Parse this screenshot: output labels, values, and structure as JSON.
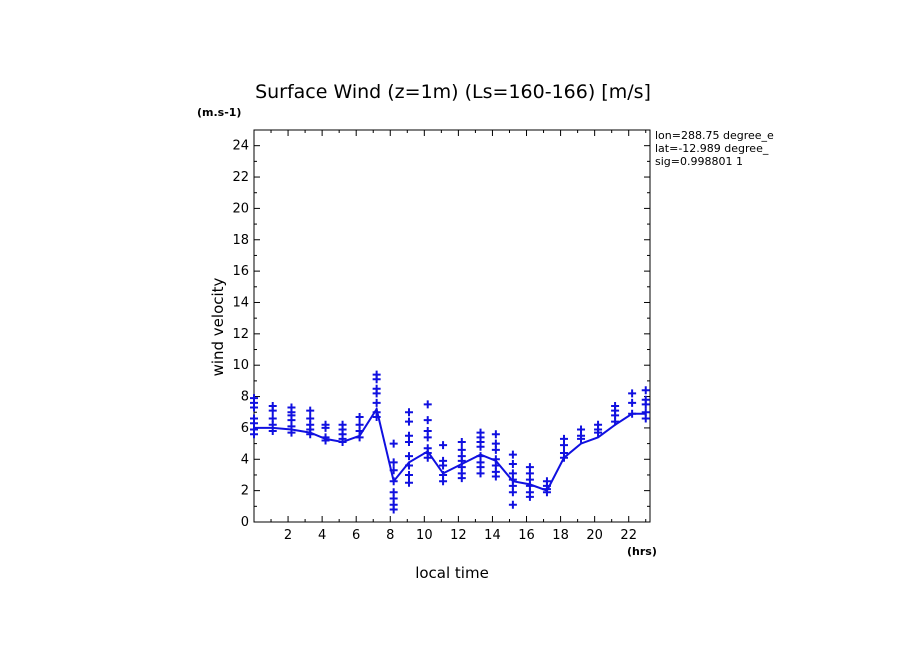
{
  "chart_data": {
    "type": "line",
    "title": "Surface Wind (z=1m) (Ls=160-166) [m/s]",
    "ylabel": "wind velocity",
    "y_unit": "(m.s-1)",
    "xlabel": "local time",
    "x_unit": "(hrs)",
    "xlim": [
      0,
      23.25
    ],
    "ylim": [
      0,
      25
    ],
    "x_ticks": [
      2,
      4,
      6,
      8,
      10,
      12,
      14,
      16,
      18,
      20,
      22
    ],
    "y_ticks": [
      0,
      2,
      4,
      6,
      8,
      10,
      12,
      14,
      16,
      18,
      20,
      22,
      24
    ],
    "info_lines": [
      "lon=288.75 degree_e",
      "lat=-12.989 degree_",
      "sig=0.998801 1"
    ],
    "color": "#1010e0",
    "series": [
      {
        "kind": "line",
        "x": [
          0,
          1.1,
          2.2,
          3.3,
          4.2,
          5.2,
          6.2,
          7.2,
          8.2,
          9.1,
          10.2,
          11.1,
          12.2,
          13.3,
          14.2,
          15.2,
          16.2,
          17.2,
          18.2,
          19.2,
          20.2,
          21.2,
          22.2,
          23.0
        ],
        "y": [
          6.0,
          6.0,
          5.9,
          5.7,
          5.3,
          5.1,
          5.5,
          7.2,
          2.6,
          3.8,
          4.5,
          3.1,
          3.7,
          4.3,
          3.9,
          2.6,
          2.4,
          2.0,
          4.1,
          5.0,
          5.4,
          6.2,
          6.9,
          6.9
        ]
      },
      {
        "kind": "markers",
        "marker": "+",
        "points": [
          [
            0,
            7.9
          ],
          [
            0,
            7.6
          ],
          [
            0,
            7.3
          ],
          [
            0,
            6.6
          ],
          [
            0,
            6.3
          ],
          [
            0,
            5.9
          ],
          [
            0,
            5.6
          ],
          [
            1.1,
            7.4
          ],
          [
            1.1,
            7.1
          ],
          [
            1.1,
            6.6
          ],
          [
            1.1,
            6.2
          ],
          [
            1.1,
            5.8
          ],
          [
            2.2,
            7.3
          ],
          [
            2.2,
            7.0
          ],
          [
            2.2,
            6.8
          ],
          [
            2.2,
            6.5
          ],
          [
            2.2,
            6.1
          ],
          [
            2.2,
            5.7
          ],
          [
            3.3,
            7.1
          ],
          [
            3.3,
            6.6
          ],
          [
            3.3,
            6.2
          ],
          [
            3.3,
            5.9
          ],
          [
            3.3,
            5.6
          ],
          [
            4.2,
            6.2
          ],
          [
            4.2,
            6.0
          ],
          [
            4.2,
            5.4
          ],
          [
            4.2,
            5.2
          ],
          [
            5.2,
            6.2
          ],
          [
            5.2,
            5.9
          ],
          [
            5.2,
            5.6
          ],
          [
            5.2,
            5.3
          ],
          [
            5.2,
            5.1
          ],
          [
            6.2,
            6.7
          ],
          [
            6.2,
            6.2
          ],
          [
            6.2,
            5.8
          ],
          [
            6.2,
            5.4
          ],
          [
            7.2,
            9.4
          ],
          [
            7.2,
            9.1
          ],
          [
            7.2,
            8.5
          ],
          [
            7.2,
            8.2
          ],
          [
            7.2,
            7.6
          ],
          [
            7.2,
            7.0
          ],
          [
            7.2,
            6.7
          ],
          [
            8.2,
            5.0
          ],
          [
            8.2,
            3.8
          ],
          [
            8.2,
            3.3
          ],
          [
            8.2,
            2.6
          ],
          [
            8.2,
            1.9
          ],
          [
            8.2,
            1.5
          ],
          [
            8.2,
            1.1
          ],
          [
            8.2,
            0.8
          ],
          [
            9.1,
            7.0
          ],
          [
            9.1,
            6.4
          ],
          [
            9.1,
            5.5
          ],
          [
            9.1,
            5.1
          ],
          [
            9.1,
            4.2
          ],
          [
            9.1,
            3.6
          ],
          [
            9.1,
            3.0
          ],
          [
            9.1,
            2.5
          ],
          [
            10.2,
            7.5
          ],
          [
            10.2,
            6.5
          ],
          [
            10.2,
            5.8
          ],
          [
            10.2,
            5.4
          ],
          [
            10.2,
            4.7
          ],
          [
            10.2,
            4.4
          ],
          [
            10.2,
            4.1
          ],
          [
            11.1,
            4.9
          ],
          [
            11.1,
            3.9
          ],
          [
            11.1,
            3.6
          ],
          [
            11.1,
            3.0
          ],
          [
            11.1,
            2.6
          ],
          [
            12.2,
            5.1
          ],
          [
            12.2,
            4.6
          ],
          [
            12.2,
            4.2
          ],
          [
            12.2,
            3.9
          ],
          [
            12.2,
            3.5
          ],
          [
            12.2,
            3.1
          ],
          [
            12.2,
            2.8
          ],
          [
            13.3,
            5.7
          ],
          [
            13.3,
            5.4
          ],
          [
            13.3,
            5.1
          ],
          [
            13.3,
            4.8
          ],
          [
            13.3,
            4.2
          ],
          [
            13.3,
            3.8
          ],
          [
            13.3,
            3.5
          ],
          [
            13.3,
            3.1
          ],
          [
            14.2,
            5.6
          ],
          [
            14.2,
            5.0
          ],
          [
            14.2,
            4.6
          ],
          [
            14.2,
            4.0
          ],
          [
            14.2,
            3.6
          ],
          [
            14.2,
            3.2
          ],
          [
            14.2,
            2.9
          ],
          [
            15.2,
            4.3
          ],
          [
            15.2,
            3.7
          ],
          [
            15.2,
            3.1
          ],
          [
            15.2,
            2.7
          ],
          [
            15.2,
            2.3
          ],
          [
            15.2,
            1.9
          ],
          [
            15.2,
            1.1
          ],
          [
            16.2,
            3.5
          ],
          [
            16.2,
            3.1
          ],
          [
            16.2,
            2.7
          ],
          [
            16.2,
            2.3
          ],
          [
            16.2,
            1.9
          ],
          [
            16.2,
            1.6
          ],
          [
            17.2,
            2.6
          ],
          [
            17.2,
            2.3
          ],
          [
            17.2,
            2.1
          ],
          [
            17.2,
            1.9
          ],
          [
            18.2,
            5.3
          ],
          [
            18.2,
            4.9
          ],
          [
            18.2,
            4.4
          ],
          [
            18.2,
            4.1
          ],
          [
            19.2,
            5.9
          ],
          [
            19.2,
            5.5
          ],
          [
            19.2,
            5.3
          ],
          [
            20.2,
            6.2
          ],
          [
            20.2,
            5.9
          ],
          [
            20.2,
            5.7
          ],
          [
            21.2,
            7.4
          ],
          [
            21.2,
            7.1
          ],
          [
            21.2,
            6.8
          ],
          [
            21.2,
            6.4
          ],
          [
            22.2,
            8.2
          ],
          [
            22.2,
            7.6
          ],
          [
            22.2,
            6.9
          ],
          [
            23.0,
            8.4
          ],
          [
            23.0,
            7.8
          ],
          [
            23.0,
            7.5
          ],
          [
            23.0,
            7.0
          ],
          [
            23.0,
            6.6
          ]
        ]
      }
    ]
  }
}
